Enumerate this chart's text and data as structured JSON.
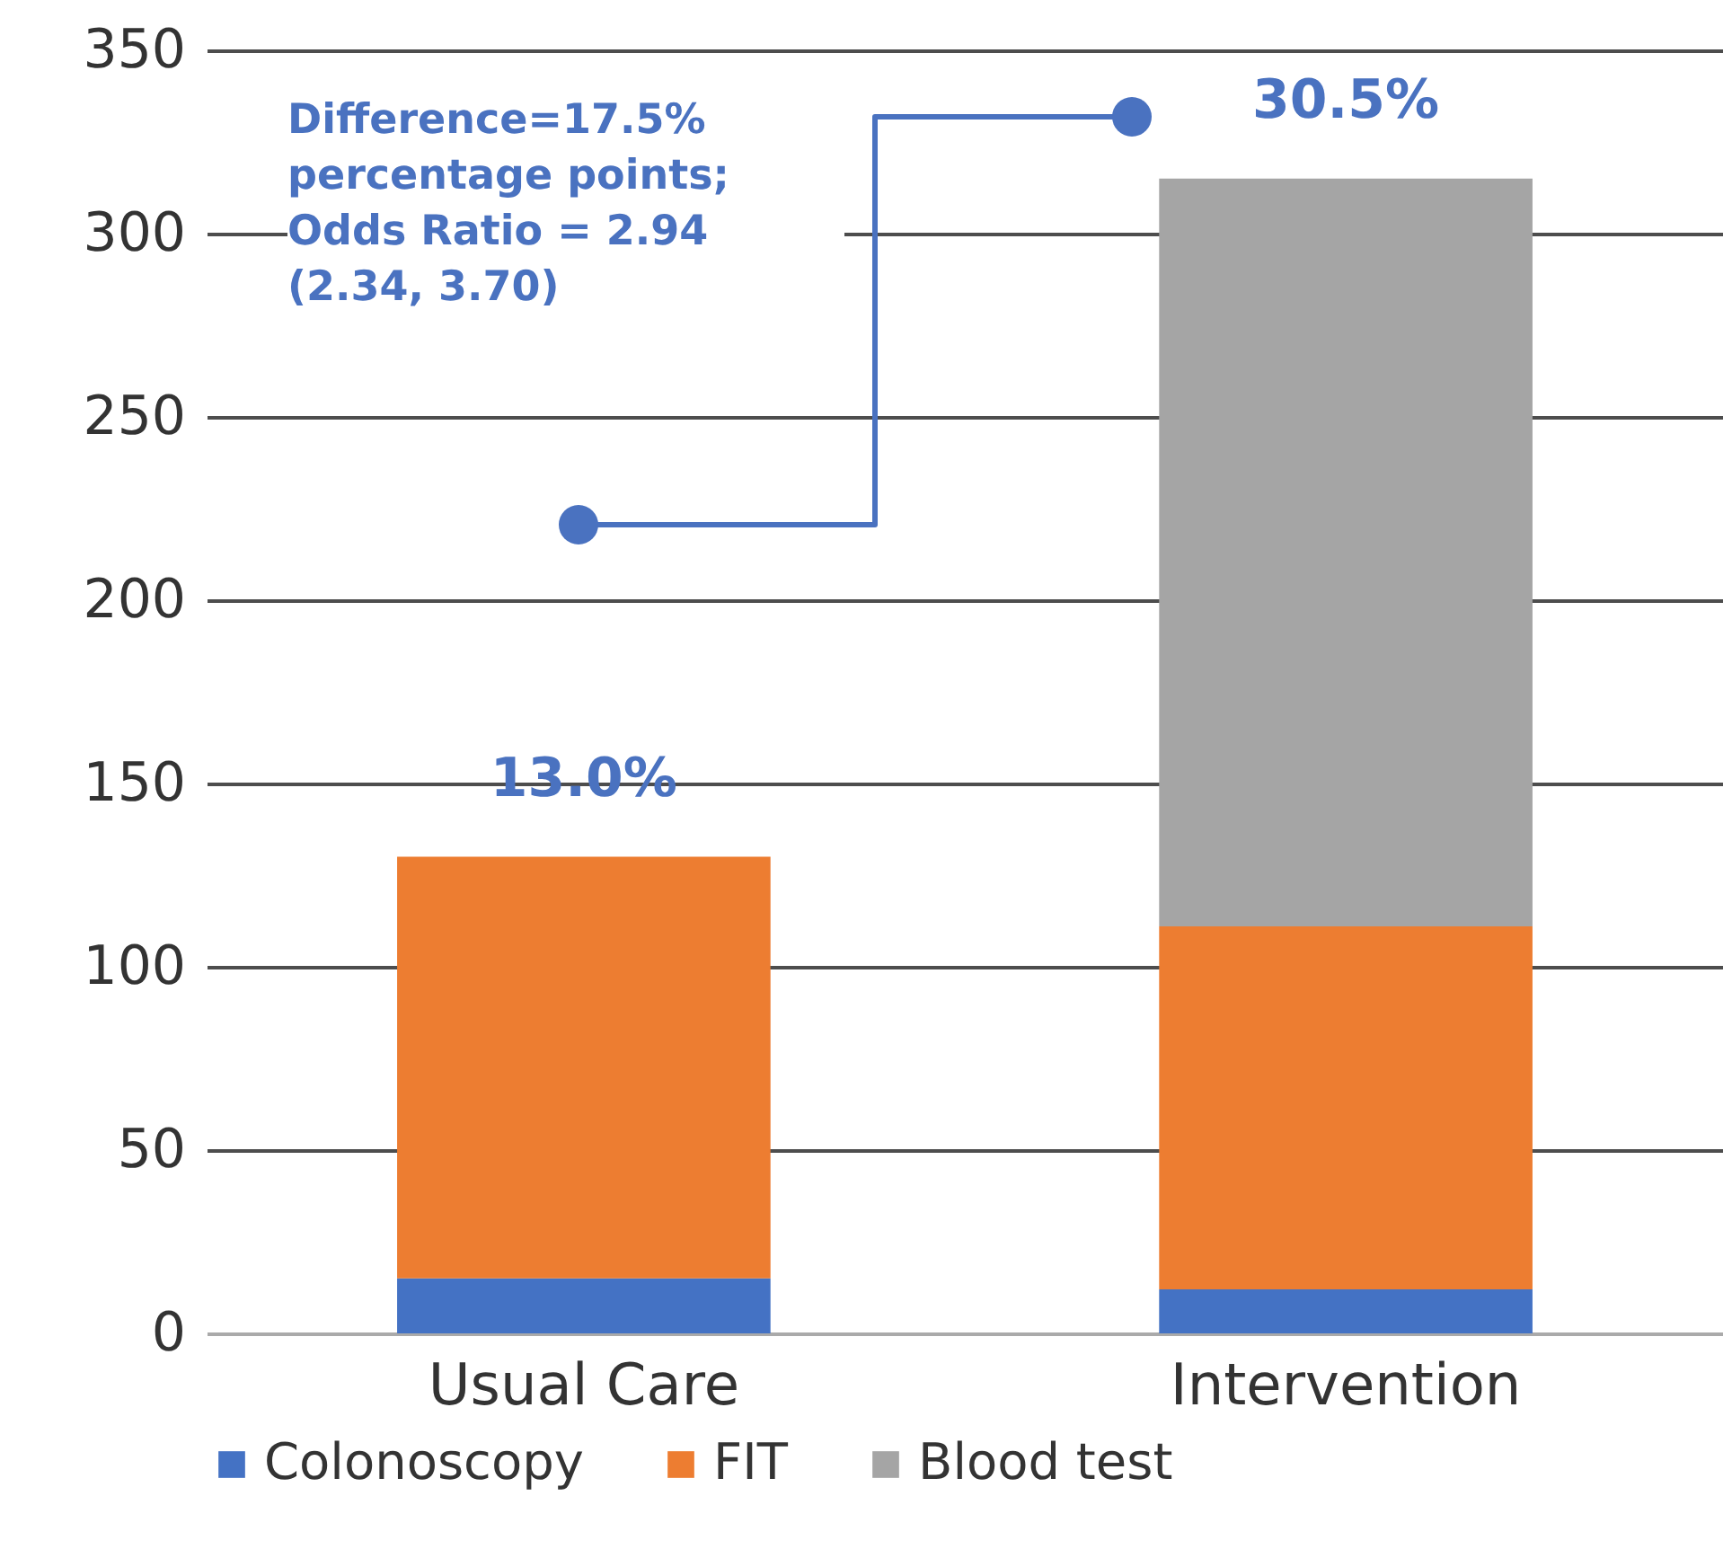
{
  "chart_data": {
    "type": "bar",
    "stacked": true,
    "categories": [
      "Usual Care",
      "Intervention"
    ],
    "series": [
      {
        "name": "Colonoscopy",
        "color": "#4472c4",
        "values": [
          15,
          12
        ]
      },
      {
        "name": "FIT",
        "color": "#ed7d31",
        "values": [
          115,
          99
        ]
      },
      {
        "name": "Blood test",
        "color": "#a5a5a5",
        "values": [
          null,
          204
        ]
      }
    ],
    "annotations": [
      "Difference=17.5% percentage points; Odds Ratio = 2.94 (2.34, 3.70)",
      "13.0%",
      "30.5%"
    ],
    "ylim": [
      0,
      350
    ],
    "yticks": [
      0,
      50,
      100,
      150,
      200,
      250,
      300,
      350
    ],
    "grid": "y",
    "legend": "bottom"
  }
}
